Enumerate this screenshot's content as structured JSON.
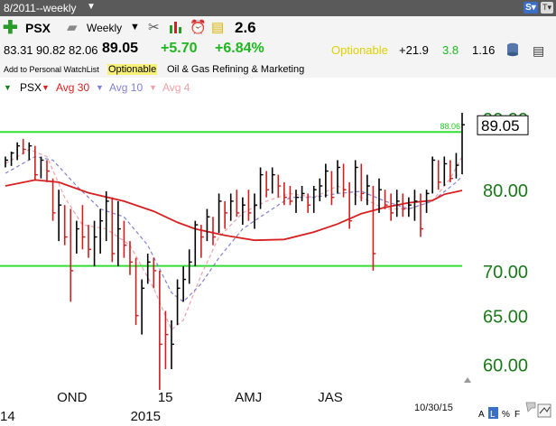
{
  "header": {
    "period": "8/2011--weekly",
    "symbol": "PSX",
    "timeframe": "Weekly",
    "rs_value": "2.6"
  },
  "quote": {
    "open": "83.31",
    "high": "90.82",
    "low": "82.06",
    "close": "89.05",
    "change": "+5.70",
    "change_pct": "+6.84%",
    "optionable": "Optionable",
    "stat1": "+21.9",
    "stat2": "3.8",
    "stat3": "1.16"
  },
  "info": {
    "watchlist": "Add to Personal WatchList",
    "optionable": "Optionable",
    "industry": "Oil & Gas Refining & Marketing"
  },
  "legend": {
    "symbol": "PSX",
    "avg30": "Avg 30",
    "avg10": "Avg 10",
    "avg4": "Avg 4"
  },
  "colors": {
    "up": "#000000",
    "down": "#cc1f1f",
    "avg30": "#d92020",
    "avg10": "#8080d8",
    "avg4": "#f0a0a8",
    "gmi_line": "#33dd33",
    "axis_text": "#1a7a1a"
  },
  "icons": [
    "plus-icon",
    "folder-icon",
    "scissors-icon",
    "bar-chart-icon",
    "alarm-clock-icon",
    "note-icon",
    "database-icon"
  ],
  "chart_data": {
    "type": "bar",
    "scale": "log",
    "ylim": [
      57.5,
      91.5
    ],
    "yticks": [
      {
        "value": 90,
        "label": "90.00"
      },
      {
        "value": 80,
        "label": "80.00"
      },
      {
        "value": 70,
        "label": "70.00"
      },
      {
        "value": 65,
        "label": "65.00"
      },
      {
        "value": 60,
        "label": "60.00"
      }
    ],
    "xlabels": [
      {
        "label": "OND",
        "bar": 9
      },
      {
        "label": "15",
        "bar": 26
      },
      {
        "label": "AMJ",
        "bar": 39
      },
      {
        "label": "JAS",
        "bar": 53
      }
    ],
    "year_labels": [
      {
        "label": "14",
        "bar": 0
      },
      {
        "label": "2015",
        "bar": 22
      }
    ],
    "date_label": "10/30/15",
    "last_price": "89.05",
    "reference_lines": [
      {
        "value": 88.0,
        "label": "88.06"
      },
      {
        "value": 70.55,
        "label": ""
      }
    ],
    "bars": [
      {
        "h": 84.5,
        "l": 83.0,
        "c": 84.0,
        "d": "up"
      },
      {
        "h": 85.2,
        "l": 83.2,
        "c": 85.0,
        "d": "up"
      },
      {
        "h": 86.5,
        "l": 84.0,
        "c": 86.0,
        "d": "up"
      },
      {
        "h": 87.0,
        "l": 84.8,
        "c": 85.5,
        "d": "down"
      },
      {
        "h": 86.5,
        "l": 84.0,
        "c": 86.0,
        "d": "up"
      },
      {
        "h": 86.0,
        "l": 81.2,
        "c": 82.0,
        "d": "down"
      },
      {
        "h": 84.5,
        "l": 81.5,
        "c": 84.0,
        "d": "up"
      },
      {
        "h": 84.0,
        "l": 81.0,
        "c": 82.5,
        "d": "down"
      },
      {
        "h": 81.5,
        "l": 76.0,
        "c": 77.0,
        "d": "down"
      },
      {
        "h": 80.0,
        "l": 73.5,
        "c": 78.0,
        "d": "up"
      },
      {
        "h": 78.0,
        "l": 73.0,
        "c": 74.0,
        "d": "down"
      },
      {
        "h": 77.5,
        "l": 66.5,
        "c": 70.0,
        "d": "down"
      },
      {
        "h": 76.0,
        "l": 72.0,
        "c": 75.0,
        "d": "up"
      },
      {
        "h": 78.0,
        "l": 72.5,
        "c": 74.0,
        "d": "down"
      },
      {
        "h": 75.5,
        "l": 71.5,
        "c": 72.5,
        "d": "down"
      },
      {
        "h": 76.0,
        "l": 70.5,
        "c": 74.0,
        "d": "up"
      },
      {
        "h": 77.5,
        "l": 72.0,
        "c": 76.0,
        "d": "up"
      },
      {
        "h": 79.8,
        "l": 73.5,
        "c": 78.5,
        "d": "up"
      },
      {
        "h": 79.0,
        "l": 71.0,
        "c": 72.0,
        "d": "down"
      },
      {
        "h": 78.5,
        "l": 70.5,
        "c": 75.0,
        "d": "up"
      },
      {
        "h": 76.0,
        "l": 71.5,
        "c": 73.0,
        "d": "down"
      },
      {
        "h": 73.5,
        "l": 69.5,
        "c": 71.0,
        "d": "down"
      },
      {
        "h": 71.5,
        "l": 64.0,
        "c": 65.0,
        "d": "down"
      },
      {
        "h": 69.0,
        "l": 63.0,
        "c": 68.0,
        "d": "up"
      },
      {
        "h": 72.0,
        "l": 68.5,
        "c": 71.0,
        "d": "up"
      },
      {
        "h": 71.5,
        "l": 68.0,
        "c": 70.0,
        "d": "down"
      },
      {
        "h": 70.0,
        "l": 57.5,
        "c": 62.0,
        "d": "down"
      },
      {
        "h": 65.5,
        "l": 59.5,
        "c": 63.0,
        "d": "down"
      },
      {
        "h": 64.5,
        "l": 59.5,
        "c": 62.0,
        "d": "up"
      },
      {
        "h": 69.0,
        "l": 64.0,
        "c": 68.0,
        "d": "up"
      },
      {
        "h": 70.5,
        "l": 66.5,
        "c": 69.0,
        "d": "up"
      },
      {
        "h": 72.5,
        "l": 68.5,
        "c": 71.0,
        "d": "up"
      },
      {
        "h": 76.0,
        "l": 70.5,
        "c": 75.5,
        "d": "up"
      },
      {
        "h": 75.5,
        "l": 71.5,
        "c": 74.0,
        "d": "down"
      },
      {
        "h": 77.5,
        "l": 73.5,
        "c": 76.5,
        "d": "up"
      },
      {
        "h": 76.5,
        "l": 73.0,
        "c": 74.0,
        "d": "down"
      },
      {
        "h": 79.5,
        "l": 74.5,
        "c": 78.5,
        "d": "up"
      },
      {
        "h": 78.5,
        "l": 75.0,
        "c": 77.0,
        "d": "down"
      },
      {
        "h": 79.5,
        "l": 76.0,
        "c": 78.5,
        "d": "up"
      },
      {
        "h": 80.0,
        "l": 76.5,
        "c": 77.0,
        "d": "down"
      },
      {
        "h": 79.0,
        "l": 75.5,
        "c": 78.0,
        "d": "up"
      },
      {
        "h": 80.0,
        "l": 76.0,
        "c": 77.0,
        "d": "down"
      },
      {
        "h": 79.5,
        "l": 75.0,
        "c": 78.0,
        "d": "up"
      },
      {
        "h": 83.0,
        "l": 77.5,
        "c": 82.0,
        "d": "up"
      },
      {
        "h": 82.5,
        "l": 79.0,
        "c": 80.0,
        "d": "down"
      },
      {
        "h": 83.0,
        "l": 79.5,
        "c": 82.0,
        "d": "up"
      },
      {
        "h": 82.0,
        "l": 79.0,
        "c": 80.5,
        "d": "down"
      },
      {
        "h": 81.0,
        "l": 78.0,
        "c": 79.0,
        "d": "down"
      },
      {
        "h": 80.5,
        "l": 78.0,
        "c": 78.5,
        "d": "down"
      },
      {
        "h": 80.0,
        "l": 77.0,
        "c": 79.0,
        "d": "up"
      },
      {
        "h": 80.5,
        "l": 78.5,
        "c": 79.5,
        "d": "up"
      },
      {
        "h": 79.5,
        "l": 77.0,
        "c": 78.0,
        "d": "down"
      },
      {
        "h": 80.5,
        "l": 77.0,
        "c": 80.0,
        "d": "up"
      },
      {
        "h": 81.5,
        "l": 78.5,
        "c": 80.5,
        "d": "up"
      },
      {
        "h": 83.5,
        "l": 79.0,
        "c": 82.5,
        "d": "up"
      },
      {
        "h": 82.5,
        "l": 78.0,
        "c": 79.0,
        "d": "down"
      },
      {
        "h": 84.0,
        "l": 79.5,
        "c": 83.0,
        "d": "up"
      },
      {
        "h": 83.5,
        "l": 79.0,
        "c": 80.0,
        "d": "down"
      },
      {
        "h": 81.0,
        "l": 75.0,
        "c": 76.0,
        "d": "down"
      },
      {
        "h": 84.0,
        "l": 78.0,
        "c": 83.0,
        "d": "up"
      },
      {
        "h": 83.5,
        "l": 78.5,
        "c": 79.5,
        "d": "down"
      },
      {
        "h": 82.0,
        "l": 78.0,
        "c": 80.5,
        "d": "up"
      },
      {
        "h": 80.5,
        "l": 70.0,
        "c": 72.0,
        "d": "down"
      },
      {
        "h": 81.5,
        "l": 77.0,
        "c": 80.0,
        "d": "up"
      },
      {
        "h": 80.0,
        "l": 77.5,
        "c": 78.0,
        "d": "down"
      },
      {
        "h": 79.5,
        "l": 76.0,
        "c": 77.0,
        "d": "down"
      },
      {
        "h": 80.0,
        "l": 76.5,
        "c": 78.5,
        "d": "up"
      },
      {
        "h": 79.5,
        "l": 76.5,
        "c": 77.5,
        "d": "down"
      },
      {
        "h": 79.0,
        "l": 76.5,
        "c": 78.0,
        "d": "up"
      },
      {
        "h": 80.0,
        "l": 76.0,
        "c": 78.5,
        "d": "up"
      },
      {
        "h": 79.5,
        "l": 74.0,
        "c": 75.0,
        "d": "down"
      },
      {
        "h": 80.0,
        "l": 77.0,
        "c": 79.5,
        "d": "up"
      },
      {
        "h": 84.5,
        "l": 79.5,
        "c": 84.0,
        "d": "up"
      },
      {
        "h": 84.0,
        "l": 80.0,
        "c": 81.0,
        "d": "down"
      },
      {
        "h": 84.5,
        "l": 80.5,
        "c": 83.5,
        "d": "up"
      },
      {
        "h": 84.0,
        "l": 81.0,
        "c": 81.5,
        "d": "down"
      },
      {
        "h": 85.0,
        "l": 81.5,
        "c": 83.3,
        "d": "up"
      },
      {
        "h": 90.82,
        "l": 82.06,
        "c": 89.05,
        "d": "up"
      }
    ],
    "avg30": [
      [
        0,
        80.5
      ],
      [
        5,
        81.3
      ],
      [
        9,
        81.0
      ],
      [
        14,
        79.6
      ],
      [
        20,
        78.5
      ],
      [
        25,
        77.2
      ],
      [
        29,
        75.8
      ],
      [
        32,
        75.0
      ],
      [
        37,
        74.2
      ],
      [
        42,
        73.6
      ],
      [
        47,
        73.7
      ],
      [
        52,
        74.6
      ],
      [
        56,
        75.6
      ],
      [
        60,
        76.9
      ],
      [
        64,
        77.7
      ],
      [
        68,
        78.3
      ],
      [
        72,
        78.6
      ],
      [
        74,
        79.4
      ],
      [
        77,
        79.9
      ]
    ],
    "avg10": [
      [
        0,
        82.2
      ],
      [
        5,
        84.5
      ],
      [
        8,
        84.0
      ],
      [
        12,
        80.5
      ],
      [
        16,
        77.5
      ],
      [
        20,
        76.5
      ],
      [
        24,
        73.0
      ],
      [
        28,
        67.5
      ],
      [
        30,
        66.5
      ],
      [
        33,
        68.5
      ],
      [
        36,
        71.5
      ],
      [
        40,
        75.0
      ],
      [
        44,
        77.0
      ],
      [
        48,
        79.0
      ],
      [
        52,
        79.0
      ],
      [
        56,
        79.5
      ],
      [
        60,
        79.8
      ],
      [
        64,
        78.5
      ],
      [
        68,
        77.5
      ],
      [
        72,
        78.5
      ],
      [
        76,
        81.0
      ],
      [
        77,
        81.8
      ]
    ],
    "avg4": [
      [
        0,
        83.5
      ],
      [
        4,
        85.5
      ],
      [
        7,
        84.5
      ],
      [
        10,
        79.0
      ],
      [
        13,
        75.5
      ],
      [
        17,
        75.0
      ],
      [
        21,
        73.0
      ],
      [
        25,
        68.0
      ],
      [
        28,
        63.5
      ],
      [
        30,
        64.5
      ],
      [
        33,
        69.5
      ],
      [
        36,
        74.0
      ],
      [
        40,
        77.0
      ],
      [
        44,
        78.5
      ],
      [
        48,
        79.5
      ],
      [
        52,
        79.0
      ],
      [
        56,
        80.5
      ],
      [
        60,
        79.0
      ],
      [
        64,
        77.5
      ],
      [
        68,
        77.5
      ],
      [
        72,
        78.5
      ],
      [
        75,
        81.5
      ],
      [
        77,
        84.5
      ]
    ]
  }
}
